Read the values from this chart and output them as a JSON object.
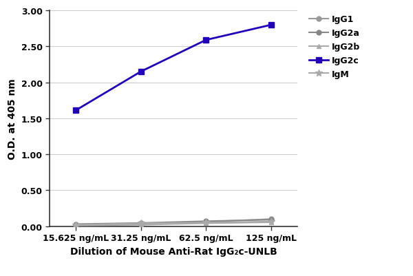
{
  "x_labels": [
    "15.625 ng/mL",
    "31.25 ng/mL",
    "62.5 ng/mL",
    "125 ng/mL"
  ],
  "x_positions": [
    0,
    1,
    2,
    3
  ],
  "series": [
    {
      "name": "IgG1",
      "values": [
        0.02,
        0.03,
        0.06,
        0.1
      ],
      "color": "#999999",
      "marker": "o",
      "markersize": 5,
      "linewidth": 1.5,
      "linestyle": "-"
    },
    {
      "name": "IgG2a",
      "values": [
        0.03,
        0.045,
        0.07,
        0.09
      ],
      "color": "#888888",
      "marker": "o",
      "markersize": 5,
      "linewidth": 1.5,
      "linestyle": "-"
    },
    {
      "name": "IgG2b",
      "values": [
        0.01,
        0.02,
        0.04,
        0.055
      ],
      "color": "#aaaaaa",
      "marker": "^",
      "markersize": 5,
      "linewidth": 1.5,
      "linestyle": "-"
    },
    {
      "name": "IgG2c",
      "values": [
        1.61,
        2.15,
        2.59,
        2.8
      ],
      "color": "#2200bb",
      "marker": "s",
      "markersize": 6,
      "linewidth": 2.0,
      "linestyle": "-"
    },
    {
      "name": "IgM",
      "values": [
        0.02,
        0.04,
        0.05,
        0.065
      ],
      "color": "#aaaaaa",
      "marker": "*",
      "markersize": 7,
      "linewidth": 1.5,
      "linestyle": "-"
    }
  ],
  "ylabel": "O.D. at 405 nm",
  "xlabel": "Dilution of Mouse Anti-Rat IgG₂c-UNLB",
  "ylim": [
    0,
    3.0
  ],
  "yticks": [
    0.0,
    0.5,
    1.0,
    1.5,
    2.0,
    2.5,
    3.0
  ],
  "ytick_labels": [
    "0.00",
    "0.50",
    "1.00",
    "1.50",
    "2.00",
    "2.50",
    "3.00"
  ],
  "background_color": "#ffffff",
  "grid_color": "#cccccc",
  "legend_fontsize": 9,
  "axis_fontsize": 10,
  "tick_fontsize": 9
}
